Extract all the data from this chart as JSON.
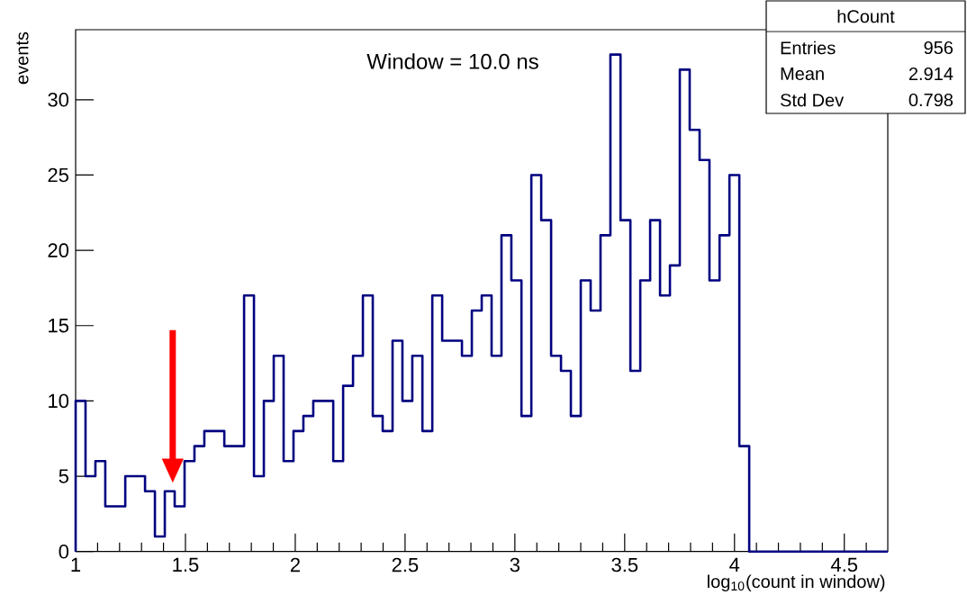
{
  "chart_data": {
    "type": "histogram",
    "title": "Window = 10.0 ns",
    "xlabel": "log$_{10}$(count in window)",
    "ylabel": "events",
    "bins": [
      1.0,
      1.045,
      1.09,
      1.135,
      1.18,
      1.226,
      1.271,
      1.316,
      1.361,
      1.406,
      1.451,
      1.496,
      1.541,
      1.586,
      1.631,
      1.677,
      1.722,
      1.767,
      1.812,
      1.857,
      1.902,
      1.947,
      1.992,
      2.037,
      2.082,
      2.128,
      2.173,
      2.218,
      2.263,
      2.308,
      2.353,
      2.398,
      2.443,
      2.488,
      2.533,
      2.579,
      2.624,
      2.669,
      2.714,
      2.759,
      2.804,
      2.849,
      2.894,
      2.939,
      2.984,
      3.03,
      3.075,
      3.12,
      3.165,
      3.21,
      3.255,
      3.3,
      3.345,
      3.39,
      3.435,
      3.481,
      3.526,
      3.571,
      3.616,
      3.661,
      3.706,
      3.751,
      3.796,
      3.841,
      3.886,
      3.932,
      3.977,
      4.022,
      4.067,
      4.112,
      4.157,
      4.202,
      4.247,
      4.292,
      4.337,
      4.383,
      4.428,
      4.473,
      4.518,
      4.563,
      4.608,
      4.653,
      4.698
    ],
    "values": [
      10,
      5,
      6,
      3,
      3,
      5,
      5,
      4,
      1,
      4,
      3,
      6,
      7,
      8,
      8,
      7,
      7,
      17,
      5,
      10,
      13,
      6,
      8,
      9,
      10,
      10,
      6,
      11,
      13,
      17,
      9,
      8,
      14,
      10,
      13,
      8,
      17,
      14,
      14,
      13,
      16,
      17,
      13,
      21,
      18,
      9,
      25,
      22,
      13,
      12,
      9,
      18,
      16,
      21,
      33,
      22,
      12,
      18,
      22,
      17,
      19,
      32,
      28,
      26,
      18,
      21,
      25,
      7,
      0,
      0,
      0,
      0,
      0,
      0,
      0,
      0,
      0,
      0,
      0,
      0,
      0,
      0
    ],
    "color": "#000080",
    "xlim": [
      1,
      4.698
    ],
    "ylim": [
      0,
      34.65
    ],
    "xticks": [
      1,
      1.5,
      2,
      2.5,
      3,
      3.5,
      4,
      4.5
    ],
    "yticks": [
      0,
      5,
      10,
      15,
      20,
      25,
      30
    ],
    "annotations": [
      "hCount",
      "Entries",
      "956",
      "Mean",
      "2.914",
      "Std Dev",
      "0.798"
    ]
  }
}
